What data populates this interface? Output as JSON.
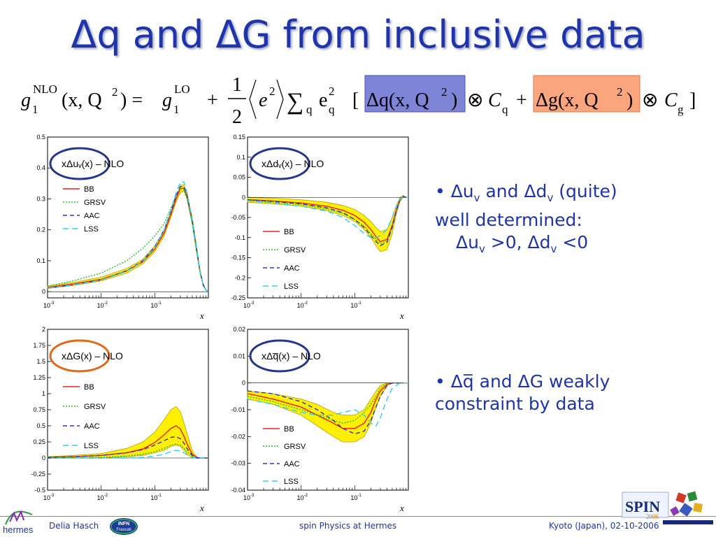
{
  "title": "Δq and ΔG from inclusive data",
  "formula": {
    "lhs_g": "g",
    "lhs_sub": "1",
    "lhs_sup": "NLO",
    "lhs_args": "(x, Q",
    "lhs_sq": "2",
    "lhs_close": ") =",
    "rhs_g": "g",
    "rhs_sub": "1",
    "rhs_sup": "LO",
    "plus": "+",
    "half_num": "1",
    "half_den": "2",
    "e_sq": "e",
    "e_sq_sup": "2",
    "sum": "∑",
    "sum_sub": "q",
    "e_q": "e",
    "e_q_sup": "2",
    "e_q_sub": "q",
    "dq_term": "Δq(x, Q",
    "dq_sq": "2",
    "dq_close": ")",
    "otimes": "⊗",
    "C": "C",
    "Cq_sub": "q",
    "plus2": "+",
    "dg_term": "Δg(x, Q",
    "dg_sq": "2",
    "dg_close": ")",
    "Cg_sub": "g",
    "lbracket": "[",
    "rbracket": "]",
    "colors": {
      "dq_box": "#7f85d6",
      "dg_box": "#f9a57d"
    }
  },
  "bullets": {
    "b1": {
      "l1_a": "• Δu",
      "l1_b": "v",
      "l1_c": " and Δd",
      "l1_d": "v",
      "l1_e": " (quite)",
      "l2": "well determined:",
      "l3_a": "Δu",
      "l3_b": "v",
      "l3_c": " >0,  Δd",
      "l3_d": "v",
      "l3_e": " <0"
    },
    "b2": {
      "l1_a": "• Δq̅",
      "l1_b": " and ΔG weakly",
      "l2": "constraint by data"
    }
  },
  "footer": {
    "author": "Delia Hasch",
    "center": "spin Physics at Hermes",
    "right": "Kyoto (Japan), 02-10-2006",
    "logo_left": "hermes",
    "infn_1": "INFN",
    "infn_2": "Frascati",
    "spin_logo": "SPIN",
    "spin_year": "2006"
  },
  "colors": {
    "title": "#1f34a8",
    "band": "#ffef00",
    "band_edge": "#b8a400",
    "circle_blue": "#26358e",
    "circle_orange": "#e06a1a"
  },
  "chart_data": [
    {
      "type": "line",
      "label": "xΔuᵥ(x) – NLO",
      "xlog": true,
      "xlim": [
        0.001,
        1
      ],
      "ylim": [
        -0.02,
        0.5
      ],
      "yticks": [
        0,
        0.1,
        0.2,
        0.3,
        0.4,
        0.5
      ],
      "ytick_labels": [
        "0",
        "0.1",
        "0.2",
        "0.3",
        "0.4",
        "0.5"
      ],
      "xticks": [
        0.001,
        0.01,
        0.1
      ],
      "xtick_base": "10",
      "xtick_exps": [
        "-3",
        "-2",
        "-1"
      ],
      "xlabel": "x",
      "legend": [
        {
          "name": "BB",
          "color": "#e82020",
          "dash": ""
        },
        {
          "name": "GRSV",
          "color": "#21c521",
          "dash": "2,2"
        },
        {
          "name": "AAC",
          "color": "#2f35c8",
          "dash": "6,4"
        },
        {
          "name": "LSS",
          "color": "#30d0f0",
          "dash": "8,5"
        }
      ],
      "x": [
        0.001,
        0.003,
        0.01,
        0.03,
        0.06,
        0.1,
        0.15,
        0.2,
        0.25,
        0.3,
        0.35,
        0.4,
        0.5,
        0.6,
        0.7,
        0.8,
        0.9,
        1.0
      ],
      "band_low": [
        0.01,
        0.02,
        0.035,
        0.06,
        0.09,
        0.13,
        0.18,
        0.24,
        0.29,
        0.32,
        0.325,
        0.3,
        0.22,
        0.13,
        0.06,
        0.02,
        0.005,
        0.0
      ],
      "band_high": [
        0.018,
        0.03,
        0.047,
        0.075,
        0.105,
        0.148,
        0.2,
        0.26,
        0.31,
        0.345,
        0.345,
        0.32,
        0.24,
        0.15,
        0.07,
        0.025,
        0.007,
        0.0
      ],
      "series": [
        {
          "name": "BB",
          "values": [
            0.014,
            0.025,
            0.04,
            0.067,
            0.097,
            0.138,
            0.19,
            0.25,
            0.3,
            0.333,
            0.335,
            0.31,
            0.23,
            0.14,
            0.065,
            0.022,
            0.006,
            0.0
          ]
        },
        {
          "name": "GRSV",
          "values": [
            0.018,
            0.035,
            0.06,
            0.1,
            0.14,
            0.18,
            0.22,
            0.27,
            0.31,
            0.335,
            0.33,
            0.3,
            0.22,
            0.13,
            0.06,
            0.02,
            0.005,
            0.0
          ]
        },
        {
          "name": "AAC",
          "values": [
            0.012,
            0.022,
            0.038,
            0.068,
            0.1,
            0.145,
            0.2,
            0.26,
            0.31,
            0.34,
            0.34,
            0.31,
            0.23,
            0.14,
            0.065,
            0.022,
            0.006,
            0.0
          ]
        },
        {
          "name": "LSS",
          "values": [
            0.012,
            0.022,
            0.038,
            0.066,
            0.098,
            0.142,
            0.2,
            0.265,
            0.32,
            0.355,
            0.355,
            0.32,
            0.23,
            0.14,
            0.065,
            0.022,
            0.006,
            0.0
          ]
        }
      ]
    },
    {
      "type": "line",
      "label": "xΔdᵥ(x) – NLO",
      "xlog": true,
      "xlim": [
        0.001,
        1
      ],
      "ylim": [
        -0.25,
        0.15
      ],
      "yticks": [
        -0.25,
        -0.2,
        -0.15,
        -0.1,
        -0.05,
        0,
        0.05,
        0.1,
        0.15
      ],
      "ytick_labels": [
        "-0.25",
        "-0.2",
        "-0.15",
        "-0.1",
        "-0.05",
        "0",
        "0.05",
        "0.1",
        "0.15"
      ],
      "xticks": [
        0.001,
        0.01,
        0.1
      ],
      "xtick_base": "10",
      "xtick_exps": [
        "-3",
        "-2",
        "-1"
      ],
      "xlabel": "x",
      "legend": [
        {
          "name": "BB",
          "color": "#e82020",
          "dash": ""
        },
        {
          "name": "GRSV",
          "color": "#21c521",
          "dash": "2,2"
        },
        {
          "name": "AAC",
          "color": "#2f35c8",
          "dash": "6,4"
        },
        {
          "name": "LSS",
          "color": "#30d0f0",
          "dash": "8,5"
        }
      ],
      "x": [
        0.001,
        0.003,
        0.01,
        0.03,
        0.06,
        0.1,
        0.15,
        0.2,
        0.25,
        0.3,
        0.4,
        0.5,
        0.6,
        0.7,
        0.8,
        0.9,
        1.0
      ],
      "band_low": [
        -0.012,
        -0.016,
        -0.022,
        -0.032,
        -0.045,
        -0.06,
        -0.08,
        -0.1,
        -0.12,
        -0.135,
        -0.13,
        -0.09,
        -0.04,
        -0.01,
        0.0,
        0.0,
        0.0
      ],
      "band_high": [
        -0.0,
        -0.002,
        -0.006,
        -0.012,
        -0.02,
        -0.03,
        -0.045,
        -0.06,
        -0.075,
        -0.085,
        -0.08,
        -0.05,
        -0.02,
        0.0,
        0.005,
        0.0,
        0.0
      ],
      "series": [
        {
          "name": "BB",
          "values": [
            -0.006,
            -0.009,
            -0.014,
            -0.022,
            -0.032,
            -0.045,
            -0.062,
            -0.08,
            -0.098,
            -0.11,
            -0.105,
            -0.07,
            -0.03,
            -0.005,
            0.002,
            0.0,
            0.0
          ]
        },
        {
          "name": "GRSV",
          "values": [
            -0.008,
            -0.012,
            -0.018,
            -0.028,
            -0.04,
            -0.055,
            -0.072,
            -0.09,
            -0.105,
            -0.115,
            -0.11,
            -0.075,
            -0.033,
            -0.006,
            0.002,
            0.0,
            0.0
          ]
        },
        {
          "name": "AAC",
          "values": [
            -0.006,
            -0.01,
            -0.016,
            -0.026,
            -0.038,
            -0.055,
            -0.075,
            -0.095,
            -0.11,
            -0.12,
            -0.112,
            -0.075,
            -0.032,
            -0.006,
            0.002,
            0.0,
            0.0
          ]
        },
        {
          "name": "LSS",
          "values": [
            -0.008,
            -0.014,
            -0.022,
            -0.034,
            -0.05,
            -0.07,
            -0.09,
            -0.1,
            -0.1,
            -0.095,
            -0.08,
            -0.05,
            -0.02,
            -0.004,
            0.001,
            0.0,
            0.0
          ]
        }
      ]
    },
    {
      "type": "line",
      "label": "xΔG(x) – NLO",
      "xlog": true,
      "xlim": [
        0.001,
        1
      ],
      "ylim": [
        -0.5,
        2
      ],
      "yticks": [
        -0.5,
        -0.25,
        0,
        0.25,
        0.5,
        0.75,
        1,
        1.25,
        1.5,
        1.75,
        2
      ],
      "ytick_labels": [
        "-0.5",
        "-0.25",
        "0",
        "0.25",
        "0.5",
        "0.75",
        "1",
        "1.25",
        "1.5",
        "1.75",
        "2"
      ],
      "xticks": [
        0.001,
        0.01,
        0.1
      ],
      "xtick_base": "10",
      "xtick_exps": [
        "-3",
        "-2",
        "-1"
      ],
      "xlabel": "x",
      "legend": [
        {
          "name": "BB",
          "color": "#e82020",
          "dash": ""
        },
        {
          "name": "GRSV",
          "color": "#21c521",
          "dash": "2,2"
        },
        {
          "name": "AAC",
          "color": "#2f35c8",
          "dash": "6,4"
        },
        {
          "name": "LSS",
          "color": "#30d0f0",
          "dash": "8,5"
        }
      ],
      "x": [
        0.001,
        0.003,
        0.01,
        0.03,
        0.06,
        0.1,
        0.15,
        0.2,
        0.25,
        0.3,
        0.35,
        0.4,
        0.5,
        0.6,
        0.7,
        1.0
      ],
      "band_low": [
        0.0,
        0.0,
        0.0,
        0.02,
        0.04,
        0.08,
        0.12,
        0.18,
        0.2,
        0.18,
        0.12,
        0.06,
        0.0,
        0.0,
        0.0,
        0.0
      ],
      "band_high": [
        0.02,
        0.04,
        0.07,
        0.15,
        0.25,
        0.4,
        0.6,
        0.75,
        0.8,
        0.72,
        0.55,
        0.38,
        0.12,
        0.02,
        0.0,
        0.0
      ],
      "series": [
        {
          "name": "BB",
          "values": [
            0.01,
            0.02,
            0.04,
            0.08,
            0.14,
            0.24,
            0.36,
            0.46,
            0.5,
            0.45,
            0.34,
            0.22,
            0.06,
            0.01,
            0.0,
            0.0
          ]
        },
        {
          "name": "GRSV",
          "values": [
            0.0,
            0.0,
            0.01,
            0.03,
            0.06,
            0.1,
            0.15,
            0.2,
            0.22,
            0.2,
            0.15,
            0.1,
            0.03,
            0.0,
            0.0,
            0.0
          ]
        },
        {
          "name": "AAC",
          "values": [
            0.01,
            0.02,
            0.04,
            0.08,
            0.13,
            0.2,
            0.27,
            0.32,
            0.33,
            0.3,
            0.23,
            0.15,
            0.04,
            0.0,
            0.0,
            0.0
          ]
        },
        {
          "name": "LSS",
          "values": [
            0.0,
            0.0,
            0.0,
            0.0,
            0.01,
            0.03,
            0.06,
            0.1,
            0.12,
            0.11,
            0.08,
            0.05,
            0.01,
            0.0,
            0.0,
            0.0
          ]
        }
      ]
    },
    {
      "type": "line",
      "label": "xΔq̅(x) – NLO",
      "xlog": true,
      "xlim": [
        0.001,
        1
      ],
      "ylim": [
        -0.04,
        0.02
      ],
      "yticks": [
        -0.04,
        -0.03,
        -0.02,
        -0.01,
        0,
        0.01,
        0.02
      ],
      "ytick_labels": [
        "-0.04",
        "-0.03",
        "-0.02",
        "-0.01",
        "0",
        "0.01",
        "0.02"
      ],
      "xticks": [
        0.001,
        0.01,
        0.1
      ],
      "xtick_base": "10",
      "xtick_exps": [
        "-3",
        "-2",
        "-1"
      ],
      "xlabel": "x",
      "legend": [
        {
          "name": "BB",
          "color": "#e82020",
          "dash": ""
        },
        {
          "name": "GRSV",
          "color": "#21c521",
          "dash": "2,2"
        },
        {
          "name": "AAC",
          "color": "#2f35c8",
          "dash": "6,4"
        },
        {
          "name": "LSS",
          "color": "#30d0f0",
          "dash": "8,5"
        }
      ],
      "x": [
        0.001,
        0.003,
        0.01,
        0.02,
        0.04,
        0.06,
        0.1,
        0.15,
        0.2,
        0.25,
        0.3,
        0.4,
        0.5,
        0.7,
        1.0
      ],
      "band_low": [
        -0.006,
        -0.008,
        -0.012,
        -0.016,
        -0.02,
        -0.022,
        -0.022,
        -0.02,
        -0.015,
        -0.009,
        -0.005,
        -0.001,
        0.0,
        0.0,
        0.0
      ],
      "band_high": [
        -0.003,
        -0.004,
        -0.006,
        -0.008,
        -0.011,
        -0.012,
        -0.012,
        -0.01,
        -0.006,
        -0.003,
        -0.001,
        0.0,
        0.0,
        0.0,
        0.0
      ],
      "series": [
        {
          "name": "BB",
          "values": [
            -0.004,
            -0.006,
            -0.009,
            -0.012,
            -0.015,
            -0.017,
            -0.017,
            -0.015,
            -0.011,
            -0.006,
            -0.003,
            -0.0005,
            0.0,
            0.0,
            0.0
          ]
        },
        {
          "name": "GRSV",
          "values": [
            -0.005,
            -0.007,
            -0.01,
            -0.012,
            -0.014,
            -0.015,
            -0.014,
            -0.011,
            -0.008,
            -0.005,
            -0.002,
            0.0,
            0.0,
            0.0,
            0.0
          ]
        },
        {
          "name": "AAC",
          "values": [
            -0.003,
            -0.004,
            -0.007,
            -0.01,
            -0.014,
            -0.017,
            -0.019,
            -0.018,
            -0.014,
            -0.009,
            -0.005,
            -0.001,
            0.0,
            0.0,
            0.0
          ]
        },
        {
          "name": "LSS",
          "values": [
            -0.006,
            -0.008,
            -0.011,
            -0.012,
            -0.012,
            -0.011,
            -0.01,
            -0.012,
            -0.015,
            -0.016,
            -0.013,
            -0.006,
            -0.002,
            0.0,
            0.0
          ]
        }
      ]
    }
  ]
}
